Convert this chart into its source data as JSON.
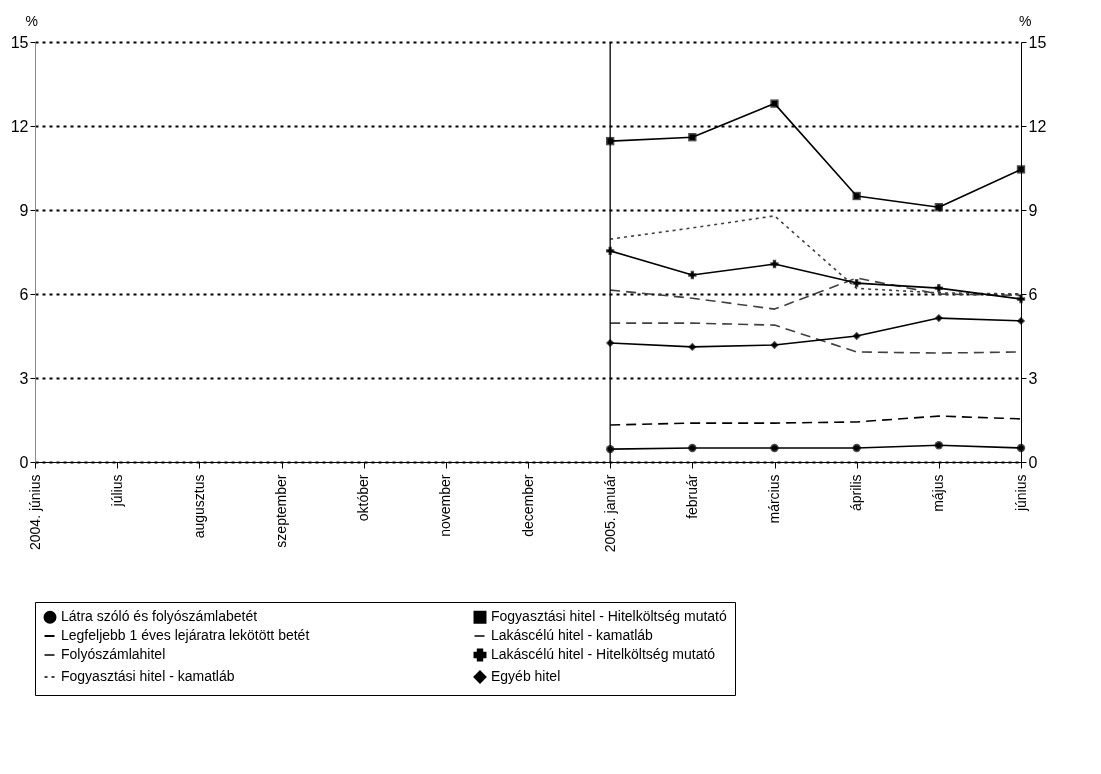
{
  "chart_data": {
    "type": "line",
    "ylabel": "%",
    "y2label": "%",
    "categories": [
      "2004. június",
      "július",
      "augusztus",
      "szeptember",
      "október",
      "november",
      "december",
      "2005. január",
      "február",
      "március",
      "április",
      "május",
      "június"
    ],
    "ylim": [
      0,
      15
    ],
    "yticks": [
      0,
      3,
      6,
      9,
      12,
      15
    ],
    "y2lim": [
      0,
      15
    ],
    "y2ticks": [
      0,
      3,
      6,
      9,
      12,
      15
    ],
    "grid": "y",
    "legend": "bottom",
    "ref_lines": [
      {
        "axis": "x",
        "value": "2005. január",
        "color": "#000000"
      }
    ],
    "series": [
      {
        "name": "Látra szóló és folyószámlabetét",
        "color": "#000000",
        "marker": "circle",
        "line_style": "solid",
        "values": [
          null,
          null,
          null,
          null,
          null,
          null,
          null,
          0.46,
          0.5,
          0.5,
          0.5,
          0.6,
          0.5
        ]
      },
      {
        "name": "Legfeljebb 1 éves lejáratra lekötött betét",
        "color": "#000000",
        "marker": "none",
        "line_style": "dashed",
        "values": [
          null,
          null,
          null,
          null,
          null,
          null,
          null,
          1.32,
          1.39,
          1.39,
          1.43,
          1.64,
          1.54
        ]
      },
      {
        "name": "Folyószámlahitel",
        "color": "#404040",
        "marker": "none",
        "line_style": "dashed",
        "values": [
          null,
          null,
          null,
          null,
          null,
          null,
          null,
          6.14,
          5.85,
          5.46,
          6.57,
          6.0,
          5.95
        ]
      },
      {
        "name": "Fogyasztási hitel - kamatláb",
        "color": "#404040",
        "marker": "none",
        "line_style": "dotted",
        "values": [
          null,
          null,
          null,
          null,
          null,
          null,
          null,
          7.96,
          8.36,
          8.79,
          6.2,
          6.04,
          6.0
        ]
      },
      {
        "name": "Fogyasztási hitel - Hitelköltség mutató",
        "color": "#000000",
        "marker": "square",
        "line_style": "solid",
        "values": [
          null,
          null,
          null,
          null,
          null,
          null,
          null,
          11.46,
          11.6,
          12.8,
          9.5,
          9.1,
          10.45
        ]
      },
      {
        "name": "Lakáscélú hitel - kamatláb",
        "color": "#404040",
        "marker": "none",
        "line_style": "dashed",
        "values": [
          null,
          null,
          null,
          null,
          null,
          null,
          null,
          4.96,
          4.96,
          4.89,
          3.93,
          3.89,
          3.93
        ]
      },
      {
        "name": "Lakáscélú hitel - Hitelköltség mutató",
        "color": "#000000",
        "marker": "cross",
        "line_style": "solid",
        "values": [
          null,
          null,
          null,
          null,
          null,
          null,
          null,
          7.54,
          6.68,
          7.07,
          6.39,
          6.21,
          5.82
        ]
      },
      {
        "name": "Egyéb hitel",
        "color": "#000000",
        "marker": "diamond",
        "line_style": "solid",
        "values": [
          null,
          null,
          null,
          null,
          null,
          null,
          null,
          4.25,
          4.11,
          4.18,
          4.5,
          5.14,
          5.04
        ]
      }
    ]
  }
}
